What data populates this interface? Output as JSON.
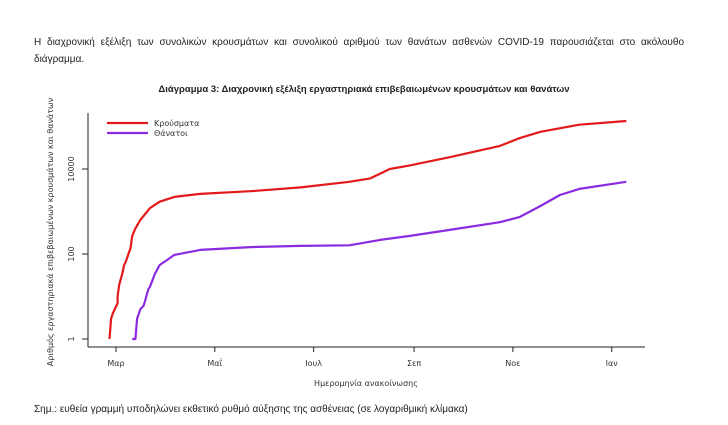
{
  "paragraph": "Η διαχρονική εξέλιξη των συνολικών κρουσμάτων και συνολικού αριθμού των θανάτων ασθενών COVID-19 παρουσιάζεται στο ακόλουθο διάγραμμα.",
  "note": "Σημ.: ευθεία γραμμή υποδηλώνει εκθετικό ρυθμό αύξησης της ασθένειας (σε λογαριθμική κλίμακα)",
  "chart_data": {
    "type": "line",
    "title": "Διάγραμμα 3: Διαχρονική εξέλιξη εργαστηριακά επιβεβαιωμένων κρουσμάτων και θανάτων",
    "xlabel": "Ημερομηνία ανακοίνωσης",
    "ylabel": "Αριθμός εργαστηριακά επιβεβαιωμένων κρουσμάτων και θανάτων",
    "x_units": "days since 1 Mar 2020",
    "xticks": [
      {
        "day": 0,
        "label": "Μαρ"
      },
      {
        "day": 61,
        "label": "Μαΐ"
      },
      {
        "day": 122,
        "label": "Ιουλ"
      },
      {
        "day": 184,
        "label": "Σεπ"
      },
      {
        "day": 245,
        "label": "Νοε"
      },
      {
        "day": 306,
        "label": "Ιαν"
      }
    ],
    "yscale": "log",
    "yticks": [
      1,
      100,
      10000
    ],
    "ylim": [
      0.6,
      400000
    ],
    "xlim": [
      -17,
      330
    ],
    "legend": "top-left",
    "grid": false,
    "series": [
      {
        "name": "Κρούσματα",
        "color": "#e31a1c",
        "x": [
          -4,
          -3,
          -2,
          1,
          1,
          2,
          4,
          5,
          6,
          9,
          10,
          12,
          15,
          21,
          27,
          36,
          52,
          83,
          114,
          144,
          157,
          169,
          181,
          206,
          237,
          249,
          262,
          286,
          315
        ],
        "values": [
          1,
          3,
          4,
          7,
          10,
          19,
          36,
          55,
          65,
          140,
          265,
          400,
          630,
          1200,
          1700,
          2200,
          2600,
          3000,
          3700,
          5000,
          6000,
          10000,
          12000,
          19000,
          35000,
          53000,
          75000,
          110000,
          135000
        ]
      },
      {
        "name": "Θάνατοι",
        "color": "#8a2be2",
        "x": [
          10,
          12,
          13,
          15,
          17,
          18,
          20,
          21,
          24,
          27,
          31,
          36,
          52,
          83,
          114,
          144,
          163,
          181,
          206,
          237,
          249,
          262,
          274,
          286,
          315
        ],
        "values": [
          1,
          1,
          3,
          5,
          6,
          8,
          15,
          17,
          34,
          55,
          70,
          95,
          125,
          145,
          155,
          160,
          215,
          265,
          370,
          560,
          740,
          1350,
          2450,
          3400,
          5000
        ]
      }
    ]
  }
}
